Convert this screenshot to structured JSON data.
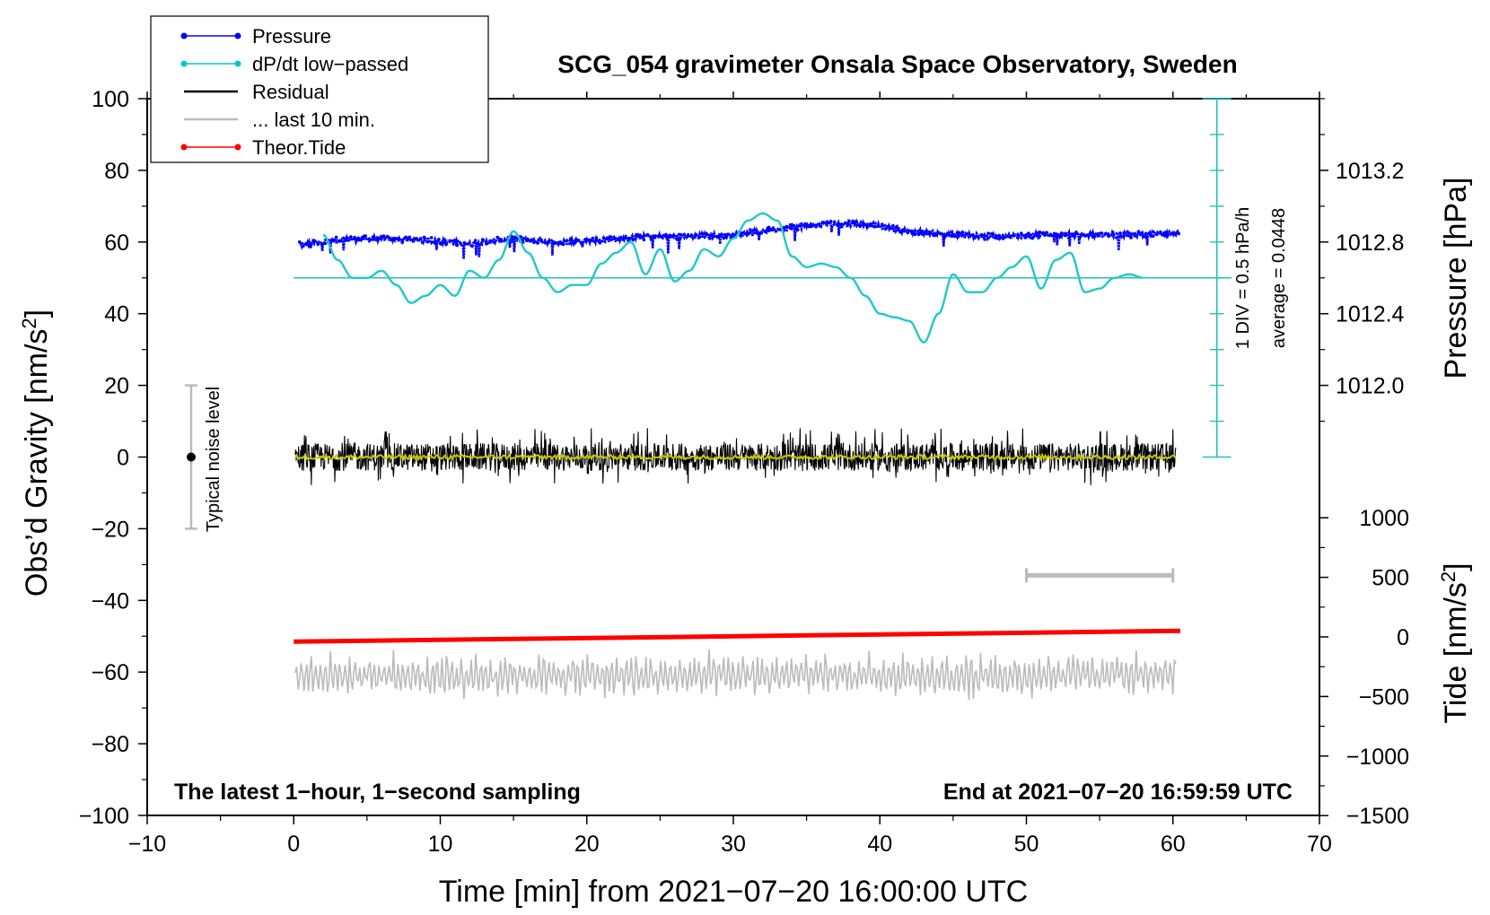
{
  "chart_data": {
    "type": "line",
    "title": "SCG_054 gravimeter Onsala Space Observatory, Sweden",
    "xlabel": "Time [min] from 2021−07−20 16:00:00 UTC",
    "ylabel": "Obs’d Gravity [nm/s2]",
    "ylabel_left": {
      "main": "Obs’d Gravity [nm/s",
      "sup": "2",
      "end": "]"
    },
    "ylabel_right_top": "Pressure [hPa]",
    "ylabel_right_bottom": {
      "main": "Tide [nm/s",
      "sup": "2",
      "end": "]"
    },
    "xlim": [
      -10,
      70
    ],
    "ylim": [
      -100,
      100
    ],
    "xticks": [
      "−10",
      "0",
      "10",
      "20",
      "30",
      "40",
      "50",
      "60",
      "70"
    ],
    "xtick_values": [
      -10,
      0,
      10,
      20,
      30,
      40,
      50,
      60,
      70
    ],
    "yticks": [
      "−100",
      "−80",
      "−60",
      "−40",
      "−20",
      "0",
      "20",
      "40",
      "60",
      "80",
      "100"
    ],
    "ytick_values": [
      -100,
      -80,
      -60,
      -40,
      -20,
      0,
      20,
      40,
      60,
      80,
      100
    ],
    "pressure_axis": {
      "ticks": [
        "1012.0",
        "1012.4",
        "1012.8",
        "1013.2"
      ],
      "values": [
        1012.0,
        1012.4,
        1012.8,
        1013.2
      ],
      "gravity_equiv": [
        20,
        40,
        60,
        80
      ]
    },
    "tide_axis": {
      "ticks": [
        "−1500",
        "−1000",
        "−500",
        "0",
        "500",
        "1000"
      ],
      "values": [
        -1500,
        -1000,
        -500,
        0,
        500,
        1000
      ]
    },
    "legend": [
      {
        "label": "Pressure",
        "color": "#0000ff",
        "marker": true
      },
      {
        "label": "dP/dt low−passed",
        "color": "#00c8c8",
        "marker": true
      },
      {
        "label": "Residual",
        "color": "#000000",
        "marker": false
      },
      {
        "label": "... last 10 min.",
        "color": "#bbbbbb",
        "marker": false
      },
      {
        "label": "Theor.Tide",
        "color": "#ff0000",
        "marker": true
      }
    ],
    "series": [
      {
        "name": "Pressure",
        "color": "#0000ff",
        "x": [
          0,
          3,
          6,
          9,
          12,
          15,
          18,
          21,
          24,
          27,
          30,
          33,
          36,
          39,
          42,
          45,
          48,
          51,
          54,
          57,
          60
        ],
        "y": [
          59,
          60.5,
          61,
          60.5,
          59.5,
          61,
          60,
          60.5,
          61.5,
          61.5,
          62,
          63.5,
          65,
          65,
          63,
          62,
          61.5,
          62,
          62,
          62,
          62.5
        ]
      },
      {
        "name": "dP/dt low-passed",
        "color": "#00c8c8",
        "x": [
          2,
          3,
          4,
          5,
          6,
          7,
          8,
          9,
          10,
          11,
          12,
          13,
          14,
          15,
          16,
          17,
          18,
          19,
          20,
          21,
          22,
          23,
          24,
          25,
          26,
          27,
          28,
          29,
          30,
          31,
          32,
          33,
          34,
          35,
          36,
          37,
          38,
          39,
          40,
          41,
          42,
          43,
          44,
          45,
          46,
          47,
          48,
          49,
          50,
          51,
          52,
          53,
          54,
          55,
          56,
          57,
          58
        ],
        "y": [
          62,
          55,
          50,
          50,
          52,
          48,
          43,
          45,
          48,
          45,
          52,
          50,
          55,
          63,
          57,
          50,
          46,
          48,
          48,
          54,
          57,
          60,
          51,
          58,
          49,
          52,
          58,
          56,
          61,
          66,
          68,
          66,
          56,
          53,
          54,
          53,
          50,
          45,
          40,
          39,
          38,
          32,
          40,
          51,
          46,
          46,
          50,
          53,
          56,
          47,
          55,
          57,
          46,
          47,
          50,
          51,
          50
        ]
      },
      {
        "name": "Residual",
        "color": "#000000",
        "level": 0,
        "amplitude": 7
      },
      {
        "name": "Residual (smoothed)",
        "color": "#c8c800",
        "level": 0
      },
      {
        "name": "Theor.Tide",
        "color": "#ff0000",
        "x": [
          0,
          60.5
        ],
        "y": [
          -51.5,
          -48.5
        ]
      },
      {
        "name": "... last 10 min.",
        "color": "#bbbbbb",
        "level": -61,
        "amplitude": 7
      }
    ],
    "dpdt_reference_level": 50,
    "scale_bar": {
      "label": "1 DIV = 0.5 hPa/h",
      "average_label": "average = 0.0448",
      "x": 63,
      "y_range": [
        0,
        100
      ]
    },
    "noise_bar": {
      "label": "Typical noise level",
      "x": -7,
      "y_range": [
        -20,
        20
      ],
      "center": 0
    },
    "ten_min_bar": {
      "x_range": [
        50,
        60
      ],
      "y": -33
    },
    "annotations": {
      "left_bottom": "The latest 1−hour, 1−second sampling",
      "right_bottom": "End at 2021−07−20 16:59:59 UTC"
    }
  }
}
